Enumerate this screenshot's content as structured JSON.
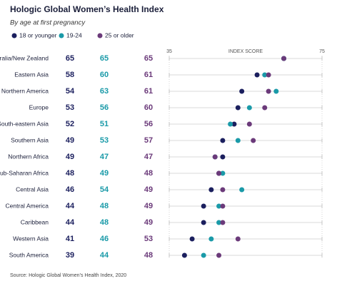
{
  "chart_data": {
    "type": "dot",
    "title": "Hologic Global Women’s Health Index",
    "subtitle": "By age at first pregnancy",
    "categories": [
      "Australia/New Zealand",
      "Eastern Asia",
      "Northern America",
      "Europe",
      "South-eastern Asia",
      "Southern Asia",
      "Northern Africa",
      "Sub-Saharan Africa",
      "Central Asia",
      "Central America",
      "Caribbean",
      "Western Asia",
      "South America"
    ],
    "series": [
      {
        "name": "18 or younger",
        "color": "#1b1f5e",
        "values": [
          65,
          58,
          54,
          53,
          52,
          49,
          49,
          48,
          46,
          44,
          44,
          41,
          39
        ]
      },
      {
        "name": "19-24",
        "color": "#1a9aa8",
        "values": [
          65,
          60,
          63,
          56,
          51,
          53,
          47,
          49,
          54,
          48,
          48,
          46,
          44
        ]
      },
      {
        "name": "25 or older",
        "color": "#6b3a7a",
        "values": [
          65,
          61,
          61,
          60,
          56,
          57,
          47,
          48,
          49,
          49,
          49,
          53,
          48
        ]
      }
    ],
    "xlabel": "INDEX SCORE",
    "xlim": [
      35,
      75
    ],
    "xticks": [
      35,
      75
    ],
    "source": "Source: Hologic Global Women’s Health Index, 2020"
  }
}
